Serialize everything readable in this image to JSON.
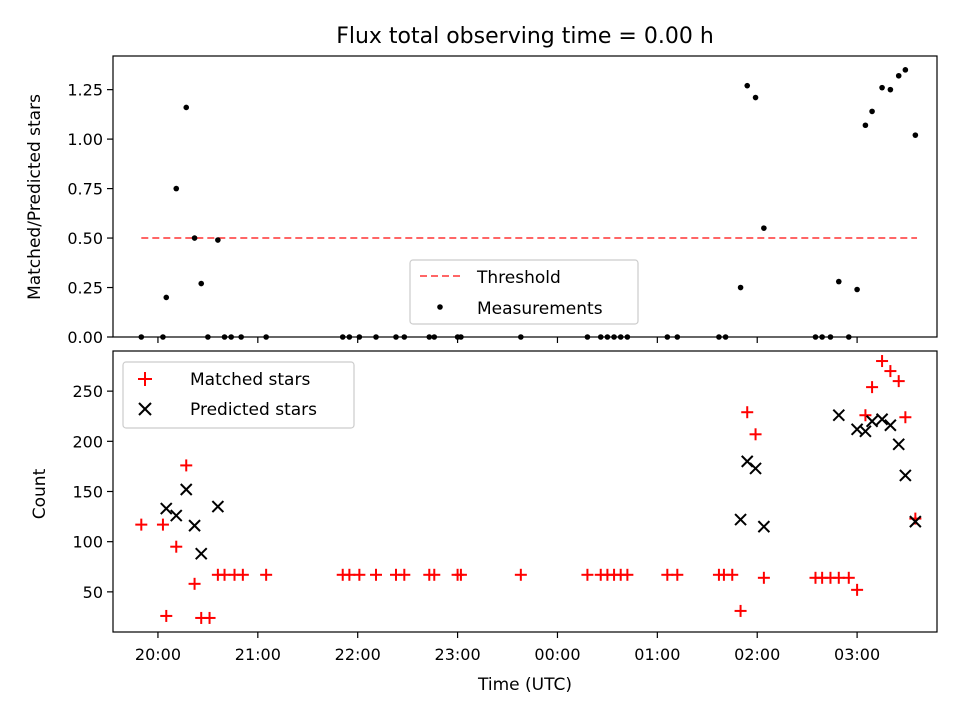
{
  "chart_data": [
    {
      "type": "scatter",
      "title": "Flux total observing time = 0.00 h",
      "xlabel": "",
      "ylabel": "Matched/Predicted stars",
      "ylim": [
        0,
        1.42
      ],
      "yticks": [
        0.0,
        0.25,
        0.5,
        0.75,
        1.0,
        1.25
      ],
      "ytick_labels": [
        "0.00",
        "0.25",
        "0.50",
        "0.75",
        "1.00",
        "1.25"
      ],
      "xlim": [
        "19:33",
        "03:48"
      ],
      "legend_position": "lower-center",
      "threshold": {
        "name": "Threshold",
        "value": 0.5,
        "x_start": "19:50",
        "x_end": "03:36",
        "color": "#ff6666"
      },
      "series": [
        {
          "name": "Measurements",
          "color": "#000000",
          "points": [
            [
              "19:50",
              0.0
            ],
            [
              "20:03",
              0.0
            ],
            [
              "20:05",
              0.2
            ],
            [
              "20:11",
              0.75
            ],
            [
              "20:17",
              1.16
            ],
            [
              "20:22",
              0.5
            ],
            [
              "20:26",
              0.27
            ],
            [
              "20:30",
              0.0
            ],
            [
              "20:36",
              0.49
            ],
            [
              "20:40",
              0.0
            ],
            [
              "20:44",
              0.0
            ],
            [
              "20:50",
              0.0
            ],
            [
              "21:05",
              0.0
            ],
            [
              "21:51",
              0.0
            ],
            [
              "21:55",
              0.0
            ],
            [
              "22:01",
              0.0
            ],
            [
              "22:11",
              0.0
            ],
            [
              "22:23",
              0.0
            ],
            [
              "22:28",
              0.0
            ],
            [
              "22:43",
              0.0
            ],
            [
              "22:46",
              0.0
            ],
            [
              "23:00",
              0.0
            ],
            [
              "23:02",
              0.0
            ],
            [
              "23:38",
              0.0
            ],
            [
              "00:18",
              0.0
            ],
            [
              "00:26",
              0.0
            ],
            [
              "00:30",
              0.0
            ],
            [
              "00:34",
              0.0
            ],
            [
              "00:38",
              0.0
            ],
            [
              "00:42",
              0.0
            ],
            [
              "01:06",
              0.0
            ],
            [
              "01:12",
              0.0
            ],
            [
              "01:37",
              0.0
            ],
            [
              "01:41",
              0.0
            ],
            [
              "01:50",
              0.25
            ],
            [
              "01:54",
              1.27
            ],
            [
              "01:59",
              1.21
            ],
            [
              "02:04",
              0.55
            ],
            [
              "02:35",
              0.0
            ],
            [
              "02:39",
              0.0
            ],
            [
              "02:44",
              0.0
            ],
            [
              "02:49",
              0.28
            ],
            [
              "02:55",
              0.0
            ],
            [
              "03:00",
              0.24
            ],
            [
              "03:05",
              1.07
            ],
            [
              "03:09",
              1.14
            ],
            [
              "03:15",
              1.26
            ],
            [
              "03:20",
              1.25
            ],
            [
              "03:25",
              1.32
            ],
            [
              "03:29",
              1.35
            ],
            [
              "03:35",
              1.02
            ]
          ]
        }
      ]
    },
    {
      "type": "scatter",
      "title": "",
      "xlabel": "Time (UTC)",
      "ylabel": "Count",
      "ylim": [
        10,
        290
      ],
      "yticks": [
        50,
        100,
        150,
        200,
        250
      ],
      "ytick_labels": [
        "50",
        "100",
        "150",
        "200",
        "250"
      ],
      "xlim": [
        "19:33",
        "03:48"
      ],
      "xticks": [
        "20:00",
        "21:00",
        "22:00",
        "23:00",
        "00:00",
        "01:00",
        "02:00",
        "03:00"
      ],
      "legend_position": "upper-left",
      "series": [
        {
          "name": "Matched stars",
          "color": "#ff0000",
          "marker": "plus",
          "points": [
            [
              "19:50",
              117
            ],
            [
              "20:03",
              117
            ],
            [
              "20:05",
              26
            ],
            [
              "20:11",
              95
            ],
            [
              "20:17",
              176
            ],
            [
              "20:22",
              58
            ],
            [
              "20:26",
              24
            ],
            [
              "20:31",
              24
            ],
            [
              "20:36",
              67
            ],
            [
              "20:40",
              67
            ],
            [
              "20:46",
              67
            ],
            [
              "20:51",
              67
            ],
            [
              "21:05",
              67
            ],
            [
              "21:51",
              67
            ],
            [
              "21:55",
              67
            ],
            [
              "22:01",
              67
            ],
            [
              "22:11",
              67
            ],
            [
              "22:23",
              67
            ],
            [
              "22:28",
              67
            ],
            [
              "22:43",
              67
            ],
            [
              "22:46",
              67
            ],
            [
              "23:00",
              67
            ],
            [
              "23:02",
              67
            ],
            [
              "23:38",
              67
            ],
            [
              "00:18",
              67
            ],
            [
              "00:26",
              67
            ],
            [
              "00:30",
              67
            ],
            [
              "00:34",
              67
            ],
            [
              "00:38",
              67
            ],
            [
              "00:42",
              67
            ],
            [
              "01:06",
              67
            ],
            [
              "01:12",
              67
            ],
            [
              "01:37",
              67
            ],
            [
              "01:40",
              67
            ],
            [
              "01:45",
              67
            ],
            [
              "01:50",
              31
            ],
            [
              "01:54",
              229
            ],
            [
              "01:59",
              207
            ],
            [
              "02:04",
              64
            ],
            [
              "02:35",
              64
            ],
            [
              "02:39",
              64
            ],
            [
              "02:44",
              64
            ],
            [
              "02:49",
              64
            ],
            [
              "02:55",
              64
            ],
            [
              "03:00",
              52
            ],
            [
              "03:05",
              226
            ],
            [
              "03:09",
              254
            ],
            [
              "03:15",
              280
            ],
            [
              "03:20",
              270
            ],
            [
              "03:25",
              260
            ],
            [
              "03:29",
              224
            ],
            [
              "03:35",
              123
            ]
          ]
        },
        {
          "name": "Predicted stars",
          "color": "#000000",
          "marker": "x",
          "points": [
            [
              "20:05",
              133
            ],
            [
              "20:11",
              126
            ],
            [
              "20:17",
              152
            ],
            [
              "20:22",
              116
            ],
            [
              "20:26",
              88
            ],
            [
              "20:36",
              135
            ],
            [
              "01:50",
              122
            ],
            [
              "01:54",
              180
            ],
            [
              "01:59",
              173
            ],
            [
              "02:04",
              115
            ],
            [
              "02:49",
              226
            ],
            [
              "03:00",
              212
            ],
            [
              "03:05",
              210
            ],
            [
              "03:09",
              220
            ],
            [
              "03:15",
              222
            ],
            [
              "03:20",
              216
            ],
            [
              "03:25",
              197
            ],
            [
              "03:29",
              166
            ],
            [
              "03:35",
              120
            ]
          ]
        }
      ]
    }
  ]
}
